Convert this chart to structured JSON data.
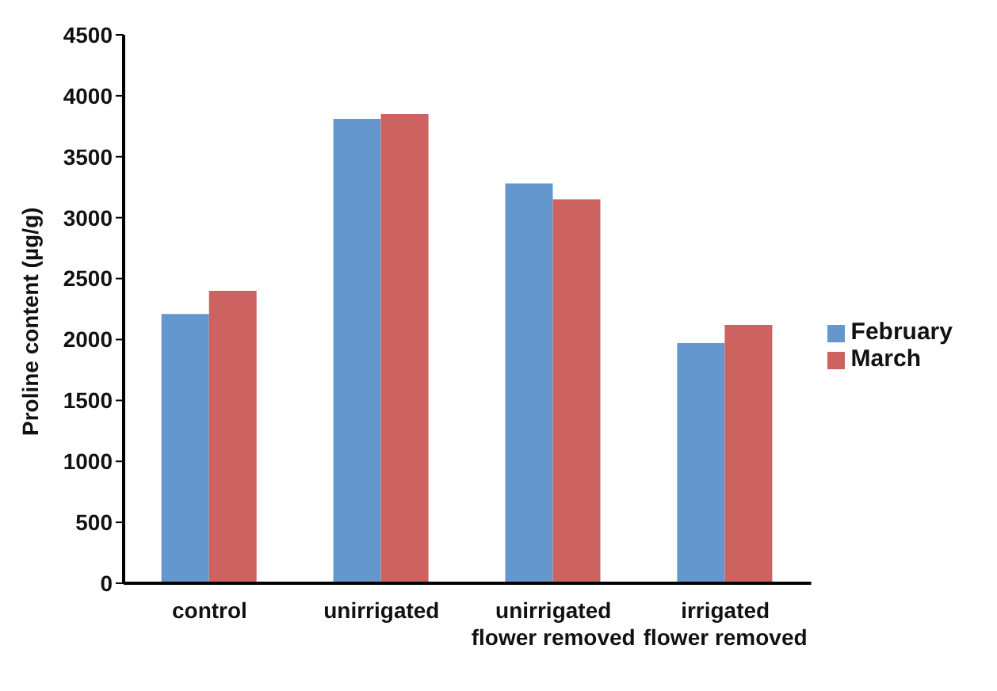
{
  "chart_data": {
    "type": "bar",
    "ylabel": "Proline content (µg/g)",
    "categories": [
      "control",
      "unirrigated",
      "unirrigated flower removed",
      "irrigated flower removed"
    ],
    "series": [
      {
        "name": "February",
        "color": "#6497cd",
        "values": [
          2210,
          3810,
          3280,
          1970
        ]
      },
      {
        "name": "March",
        "color": "#cd6360",
        "values": [
          2400,
          3850,
          3150,
          2120
        ]
      }
    ],
    "ylim": [
      0,
      4500
    ],
    "yticks": [
      0,
      500,
      1000,
      1500,
      2000,
      2500,
      3000,
      3500,
      4000,
      4500
    ],
    "grid": false,
    "legend": "right"
  }
}
